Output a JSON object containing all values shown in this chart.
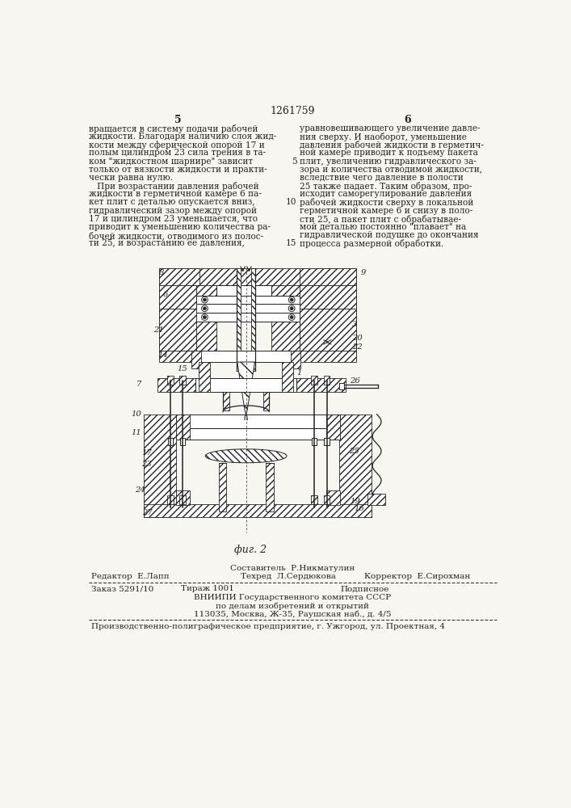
{
  "patent_number": "1261759",
  "page_left": "5",
  "page_right": "6",
  "bg_color": "#f8f6f0",
  "text_color": "#1a1a1a",
  "col1_text": [
    "вращается в систему подачи рабочей",
    "жидкости. Благодаря наличию слоя жид-",
    "кости между сферической опорой 17 и",
    "полым цилиндром 23 сила трения в та-",
    "ком \"жидкостном шарнире\" зависит",
    "только от вязкости жидкости и практи-",
    "чески равна нулю.",
    "   При возрастании давления рабочей",
    "жидкости в герметичной камере 6 па-",
    "кет плит с деталью опускается вниз,",
    "гидравлический зазор между опорой",
    "17 и цилиндром 23 уменьшается, что",
    "приводит к уменьшению количества ра-",
    "бочей жидкости, отводимого из полос-",
    "ти 25, и возрастанию ее давления,"
  ],
  "col2_text": [
    "уравновешивающего увеличение давле-",
    "ния сверху. И наоборот, уменьшение",
    "давления рабочей жидкости в герметич-",
    "ной камере приводит к подъему пакета",
    "плит, увеличению гидравлического за-",
    "зора и количества отводимой жидкости,",
    "вследствие чего давление в полости",
    "25 также падает. Таким образом, про-",
    "исходит саморегулирование давления",
    "рабочей жидкости сверху в локальной",
    "герметичной камере 6 и снизу в поло-",
    "сти 25, а пакет плит с обрабатывае-",
    "мой деталью постоянно \"плавает\" на",
    "гидравлической подушке до окончания",
    "процесса размерной обработки."
  ],
  "line_numbers": {
    "4": "5",
    "9": "10",
    "14": "15"
  },
  "fig_caption": "фиг. 2",
  "footer_composer": "Составитель  Р.Никматулин",
  "footer_editor": "Редактор  Е.Лапп",
  "footer_tech": "Техред  Л.Сердюкова",
  "footer_corrector": "Корректор  Е.Сирохман",
  "footer_order": "Заказ 5291/10",
  "footer_circulation": "Тираж 1001",
  "footer_subscription": "Подписное",
  "footer_vniiipi_line1": "ВНИИПИ Государственного комитета СССР",
  "footer_vniiipi_line2": "по делам изобретений и открытий",
  "footer_vniiipi_line3": "113035, Москва, Ж-35, Раушская наб., д. 4/5",
  "footer_production": "Производственно-полиграфическое предприятие, г. Ужгород, ул. Проектная, 4"
}
